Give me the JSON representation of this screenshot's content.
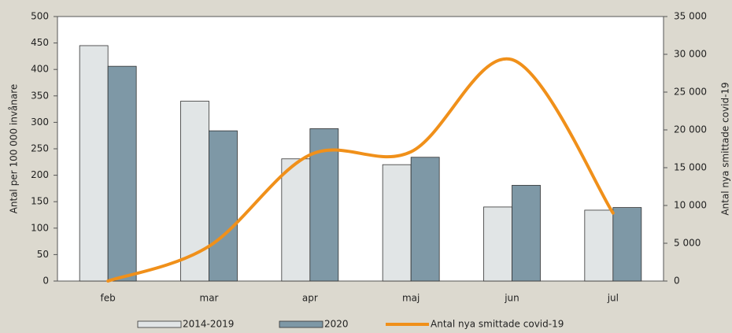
{
  "chart_data": {
    "type": "bar_line",
    "categories": [
      "feb",
      "mar",
      "apr",
      "maj",
      "jun",
      "jul"
    ],
    "series": [
      {
        "name": "2014-2019",
        "type": "bar",
        "color": "#e1e5e6",
        "values": [
          445,
          340,
          231,
          220,
          140,
          134
        ]
      },
      {
        "name": "2020",
        "type": "bar",
        "color": "#7e98a6",
        "values": [
          406,
          284,
          288,
          234,
          181,
          139
        ]
      },
      {
        "name": "Antal nya smittade covid-19",
        "type": "line",
        "axis": "y2",
        "color": "#f0901a",
        "values": [
          0,
          4600,
          16700,
          17100,
          29300,
          9000
        ]
      }
    ],
    "ylabel": "Antal per 100 000 invånare",
    "y2label": "Antal nya smittade covid-19",
    "ylim": [
      0,
      500
    ],
    "yticks": [
      0,
      50,
      100,
      150,
      200,
      250,
      300,
      350,
      400,
      450,
      500
    ],
    "y2lim": [
      0,
      35000
    ],
    "y2ticks": [
      0,
      {
        "value": 5000,
        "label": "5 000"
      },
      {
        "value": 10000,
        "label": "10 000"
      },
      {
        "value": 15000,
        "label": "15 000"
      },
      {
        "value": 20000,
        "label": "20 000"
      },
      {
        "value": 25000,
        "label": "25 000"
      },
      {
        "value": 30000,
        "label": "30 000"
      },
      {
        "value": 35000,
        "label": "35 000"
      }
    ],
    "grid": false,
    "legend": "bottom"
  }
}
